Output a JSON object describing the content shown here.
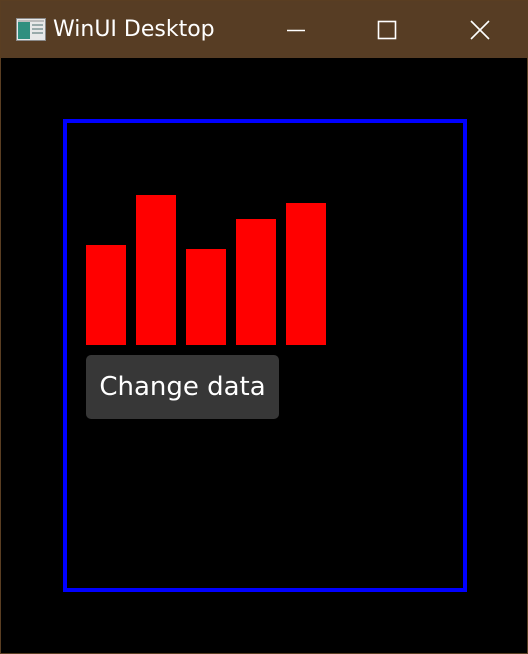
{
  "window": {
    "title": "WinUI Desktop",
    "accent_color": "#573d24"
  },
  "captions": {
    "minimize_icon": "minimize-icon",
    "maximize_icon": "maximize-icon",
    "close_icon": "close-icon"
  },
  "frame": {
    "border_color": "#0000ff"
  },
  "chart_data": {
    "type": "bar",
    "categories": [
      "",
      "",
      "",
      "",
      ""
    ],
    "values": [
      100,
      150,
      96,
      126,
      142
    ],
    "color": "#ff0000",
    "ylim": [
      0,
      195
    ],
    "title": "",
    "xlabel": "",
    "ylabel": ""
  },
  "action": {
    "label": "Change data"
  }
}
